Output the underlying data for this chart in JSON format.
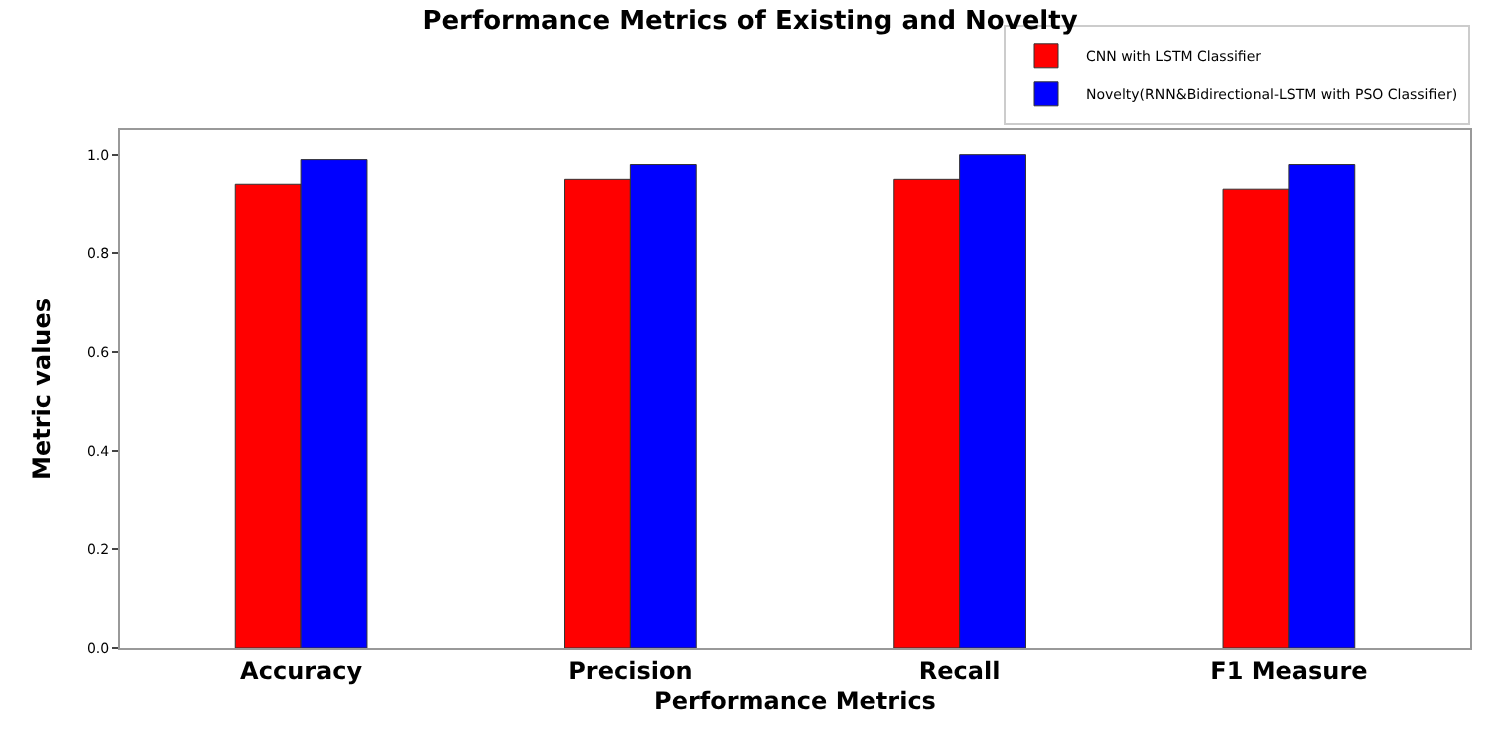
{
  "chart_data": {
    "type": "bar",
    "title": "Performance Metrics of Existing and Novelty",
    "xlabel": "Performance Metrics",
    "ylabel": "Metric values",
    "categories": [
      "Accuracy",
      "Precision",
      "Recall",
      "F1 Measure"
    ],
    "series": [
      {
        "name": "CNN with LSTM Classifier",
        "color": "#ff0000",
        "values": [
          0.94,
          0.95,
          0.95,
          0.93
        ]
      },
      {
        "name": "Novelty(RNN&Bidirectional-LSTM with PSO Classifier)",
        "color": "#0000ff",
        "values": [
          0.99,
          0.98,
          1.0,
          0.98
        ]
      }
    ],
    "ylim": [
      0,
      1.05
    ],
    "yticks": [
      {
        "value": 0,
        "label": "0.0"
      },
      0.2,
      0.4,
      0.6,
      0.8,
      {
        "value": 1,
        "label": "1.0"
      }
    ],
    "legend": "top right"
  }
}
